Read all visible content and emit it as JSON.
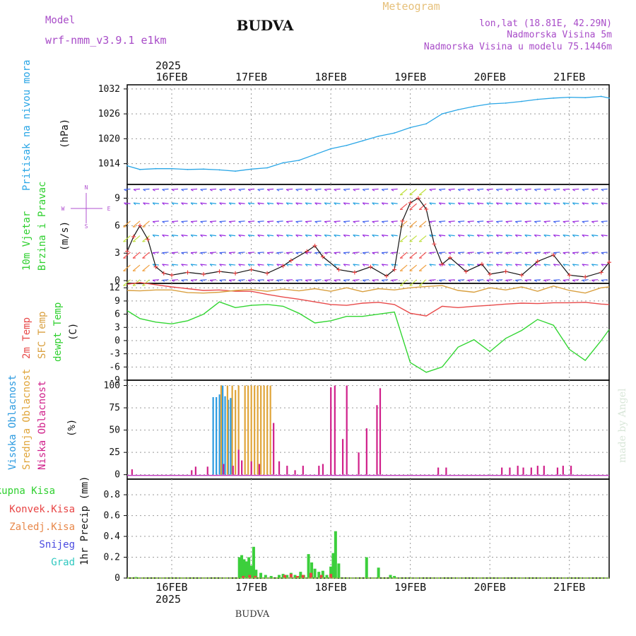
{
  "header": {
    "model_label": "Model",
    "model_name": "wrf-nmm_v3.9.1 e1km",
    "station": "BUDVA",
    "product": "Meteogram",
    "coords": "lon,lat (18.81E, 42.29N)",
    "elevation": "Nadmorska Visina 5m",
    "model_elevation": "Nadmorska Visina u modelu 75.1446m",
    "footer_station": "BUDVA",
    "watermark": "made by Angel"
  },
  "time_axis": {
    "year": "2025",
    "ticks": [
      "16FEB",
      "17FEB",
      "18FEB",
      "19FEB",
      "20FEB",
      "21FEB"
    ],
    "range_days": [
      -0.56,
      5.5
    ]
  },
  "panels": {
    "pressure": {
      "ylabel_left": "Pritisak na nivou mora",
      "unit": "(hPa)",
      "ticks": [
        "1014",
        "1020",
        "1026",
        "1032"
      ]
    },
    "wind": {
      "ylabel_left": "10m Vjetar",
      "ylabel_left2": "Brzina i Pravac",
      "unit": "(m/s)",
      "ticks": [
        "0",
        "3",
        "6",
        "9"
      ],
      "compass": {
        "n": "N",
        "s": "S",
        "w": "W",
        "e": "E"
      }
    },
    "temperature": {
      "label1": "2m Temp",
      "label2": "SFC Temp",
      "label3": "dewpt Temp",
      "unit": "(C)",
      "ticks": [
        "-9",
        "-6",
        "-3",
        "0",
        "3",
        "6",
        "9",
        "12"
      ]
    },
    "cloud": {
      "label1": "Visoka Oblacnost",
      "label2": "Srednja Oblacnost",
      "label3": "Niska Oblacnost",
      "unit": "(%)",
      "ticks": [
        "0",
        "25",
        "50",
        "75",
        "100"
      ]
    },
    "precip": {
      "legend": [
        "Ukupna Kisa",
        "Konvek.Kisa",
        "Zaledj.Kisa",
        "Snijeg",
        "Grad"
      ],
      "ylabel": "1hr Precip (mm)",
      "ticks": [
        "0",
        "0.2",
        "0.4",
        "0.6",
        "0.8"
      ]
    }
  },
  "colors": {
    "pressure": "#2aa6e6",
    "wind_speed": "#e83a3a",
    "temp2m": "#e84a4a",
    "sfc": "#d9a040",
    "dewpt": "#33d633",
    "cloud_high": "#2d9be0",
    "cloud_mid": "#e0a53a",
    "cloud_low": "#d0208a",
    "precip_total": "#3ccf3c",
    "precip_conv": "#e84545",
    "header_purple": "#a84cc8",
    "meteogram": "#e6c07a"
  },
  "chart_data": [
    {
      "type": "line",
      "title": "Pritisak na nivou mora",
      "ylabel": "(hPa)",
      "ylim": [
        1009,
        1033
      ],
      "x": [
        -0.56,
        -0.4,
        -0.2,
        0,
        0.2,
        0.4,
        0.6,
        0.8,
        1.0,
        1.2,
        1.4,
        1.6,
        1.8,
        2.0,
        2.2,
        2.4,
        2.6,
        2.8,
        3.0,
        3.2,
        3.4,
        3.6,
        3.8,
        4.0,
        4.2,
        4.4,
        4.6,
        4.8,
        5.0,
        5.2,
        5.4,
        5.5
      ],
      "values": [
        1013.5,
        1012.6,
        1012.8,
        1012.8,
        1012.6,
        1012.7,
        1012.5,
        1012.2,
        1012.7,
        1013.0,
        1014.2,
        1014.8,
        1016.2,
        1017.6,
        1018.4,
        1019.5,
        1020.6,
        1021.4,
        1022.7,
        1023.6,
        1026.0,
        1027.0,
        1027.8,
        1028.4,
        1028.6,
        1029.0,
        1029.5,
        1029.8,
        1030.0,
        1029.9,
        1030.2,
        1029.8
      ]
    },
    {
      "type": "line",
      "title": "10m Vjetar",
      "ylabel": "(m/s)",
      "ylim": [
        -0.3,
        10.5
      ],
      "x": [
        -0.56,
        -0.48,
        -0.4,
        -0.3,
        -0.2,
        -0.1,
        0,
        0.2,
        0.4,
        0.6,
        0.8,
        1.0,
        1.2,
        1.4,
        1.5,
        1.7,
        1.8,
        1.9,
        2.1,
        2.3,
        2.5,
        2.7,
        2.8,
        2.9,
        3.0,
        3.1,
        3.2,
        3.3,
        3.4,
        3.5,
        3.7,
        3.9,
        4.0,
        4.2,
        4.4,
        4.6,
        4.8,
        5.0,
        5.2,
        5.4,
        5.5
      ],
      "values": [
        3.2,
        4.8,
        6.0,
        4.5,
        1.5,
        0.8,
        0.6,
        0.9,
        0.7,
        1.0,
        0.8,
        1.2,
        0.8,
        1.6,
        2.2,
        3.2,
        3.8,
        2.6,
        1.2,
        0.9,
        1.5,
        0.5,
        1.2,
        6.5,
        8.5,
        9.0,
        7.8,
        4.0,
        1.8,
        2.5,
        1.0,
        1.8,
        0.7,
        1.0,
        0.6,
        2.1,
        2.8,
        0.6,
        0.4,
        0.9,
        2.0
      ]
    },
    {
      "type": "line",
      "title": "2m Temp / SFC Temp / dewpt Temp",
      "ylabel": "(C)",
      "ylim": [
        -9,
        13
      ],
      "x": [
        -0.56,
        -0.4,
        -0.2,
        0,
        0.2,
        0.4,
        0.6,
        0.8,
        1.0,
        1.2,
        1.4,
        1.6,
        1.8,
        2.0,
        2.2,
        2.4,
        2.6,
        2.8,
        3.0,
        3.2,
        3.4,
        3.6,
        3.8,
        4.0,
        4.2,
        4.4,
        4.6,
        4.8,
        5.0,
        5.2,
        5.4,
        5.5
      ],
      "series": [
        {
          "name": "2m Temp",
          "values": [
            12.8,
            13.2,
            12.7,
            12.2,
            11.8,
            11.4,
            11.5,
            11.2,
            11.2,
            10.5,
            9.9,
            9.4,
            8.8,
            8.2,
            8.0,
            8.5,
            8.7,
            8.2,
            6.2,
            5.6,
            7.8,
            7.5,
            7.8,
            8.0,
            8.3,
            8.5,
            8.4,
            8.6,
            8.6,
            8.7,
            8.3,
            8.2
          ]
        },
        {
          "name": "SFC Temp",
          "values": [
            11.4,
            11.3,
            11.5,
            11.5,
            10.9,
            10.8,
            11.0,
            11.4,
            11.6,
            11.2,
            11.7,
            11.3,
            11.8,
            11.2,
            12.0,
            11.1,
            11.8,
            11.5,
            12.0,
            12.3,
            12.5,
            11.4,
            11.0,
            12.0,
            11.5,
            12.2,
            11.2,
            12.4,
            11.4,
            10.8,
            12.0,
            12.2
          ]
        },
        {
          "name": "dewpt Temp",
          "values": [
            6.8,
            5.0,
            4.2,
            3.8,
            4.5,
            6.0,
            8.8,
            7.5,
            8.0,
            8.2,
            7.8,
            6.2,
            4.0,
            4.5,
            5.5,
            5.5,
            6.0,
            6.5,
            -5.0,
            -7.2,
            -6.0,
            -1.5,
            0.2,
            -2.5,
            0.5,
            2.3,
            4.8,
            3.5,
            -2.0,
            -4.5,
            0.0,
            2.5
          ]
        }
      ]
    },
    {
      "type": "bar",
      "title": "Oblacnost",
      "ylabel": "(%)",
      "ylim": [
        0,
        100
      ],
      "series": [
        {
          "name": "Visoka Oblacnost",
          "x": [
            0.52,
            0.56,
            0.6,
            0.64,
            0.67,
            0.71,
            0.74
          ],
          "values": [
            87,
            87,
            90,
            100,
            88,
            84,
            86
          ]
        },
        {
          "name": "Srednja Oblacnost",
          "x": [
            0.62,
            0.7,
            0.76,
            0.8,
            0.84,
            0.92,
            0.96,
            1.0,
            1.04,
            1.08,
            1.12,
            1.16,
            1.2,
            1.24
          ],
          "values": [
            100,
            100,
            100,
            95,
            100,
            100,
            100,
            100,
            100,
            100,
            100,
            100,
            100,
            100
          ]
        },
        {
          "name": "Niska Oblacnost",
          "x": [
            -0.5,
            0.25,
            0.3,
            0.45,
            0.65,
            0.77,
            0.84,
            0.88,
            1.0,
            1.1,
            1.28,
            1.35,
            1.45,
            1.55,
            1.65,
            1.85,
            1.9,
            2.0,
            2.05,
            2.15,
            2.2,
            2.35,
            2.45,
            2.58,
            2.62,
            3.35,
            3.45,
            4.15,
            4.25,
            4.35,
            4.42,
            4.52,
            4.6,
            4.68,
            4.85,
            4.92,
            5.02
          ],
          "values": [
            6,
            5,
            9,
            9,
            12,
            10,
            28,
            16,
            15,
            12,
            58,
            15,
            10,
            5,
            10,
            10,
            12,
            98,
            100,
            40,
            100,
            25,
            52,
            78,
            97,
            8,
            8,
            8,
            8,
            10,
            8,
            8,
            10,
            10,
            8,
            10,
            10
          ]
        }
      ]
    },
    {
      "type": "bar",
      "title": "1hr Precip",
      "ylabel": "1hr Precip (mm)",
      "ylim": [
        0,
        0.95
      ],
      "series": [
        {
          "name": "Ukupna Kisa",
          "x": [
            -0.45,
            0.85,
            0.88,
            0.91,
            0.94,
            0.97,
            1.0,
            1.03,
            1.06,
            1.12,
            1.18,
            1.25,
            1.35,
            1.4,
            1.45,
            1.5,
            1.55,
            1.6,
            1.62,
            1.66,
            1.72,
            1.76,
            1.8,
            1.85,
            1.9,
            1.95,
            2.0,
            2.03,
            2.06,
            2.1,
            2.45,
            2.6,
            2.75,
            2.8
          ],
          "values": [
            0.01,
            0.2,
            0.22,
            0.18,
            0.16,
            0.2,
            0.12,
            0.3,
            0.08,
            0.05,
            0.03,
            0.02,
            0.03,
            0.04,
            0.03,
            0.05,
            0.03,
            0.02,
            0.06,
            0.03,
            0.23,
            0.15,
            0.09,
            0.06,
            0.07,
            0.03,
            0.11,
            0.24,
            0.45,
            0.14,
            0.2,
            0.1,
            0.03,
            0.02
          ]
        },
        {
          "name": "Konvek.Kisa",
          "x": [
            0.9,
            0.98,
            1.05,
            1.42,
            1.5,
            1.58,
            1.65,
            1.75,
            1.88,
            2.0
          ],
          "values": [
            0.02,
            0.03,
            0.02,
            0.03,
            0.04,
            0.02,
            0.03,
            0.05,
            0.03,
            0.04
          ]
        }
      ]
    }
  ]
}
